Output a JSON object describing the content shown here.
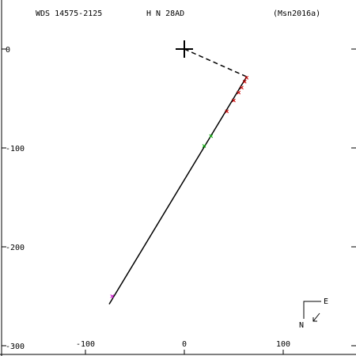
{
  "header": {
    "wds_id": "WDS 14575-2125",
    "discoverer": "H N  28AD",
    "orbit_ref": "(Msn2016a)"
  },
  "compass": {
    "east": "E",
    "north": "N"
  },
  "chart_data": {
    "type": "scatter",
    "title": "",
    "xlabel": "",
    "ylabel": "",
    "xlim": [
      -180,
      170
    ],
    "ylim": [
      -300,
      50
    ],
    "x_ticks": [
      -100,
      0,
      100
    ],
    "x_tick_labels": [
      "-100",
      "0",
      "100"
    ],
    "y_ticks": [
      0,
      -100,
      -200,
      -300
    ],
    "y_tick_labels": [
      "0",
      "-100",
      "-200",
      "-300"
    ],
    "primary": {
      "x": 0,
      "y": 0
    },
    "orbit_line": {
      "x": [
        -76,
        63
      ],
      "y": [
        -258,
        -28
      ]
    },
    "periastron_line": {
      "x": [
        0,
        63
      ],
      "y": [
        0,
        -28
      ]
    },
    "observations": [
      {
        "x": -73,
        "y": -250,
        "color": "#cc00cc"
      },
      {
        "x": 20,
        "y": -98,
        "color": "#00aa00"
      },
      {
        "x": 27,
        "y": -88,
        "color": "#00aa00"
      },
      {
        "x": 43,
        "y": -63,
        "color": "#cc0000"
      },
      {
        "x": 50,
        "y": -52,
        "color": "#cc0000"
      },
      {
        "x": 55,
        "y": -44,
        "color": "#cc0000"
      },
      {
        "x": 58,
        "y": -39,
        "color": "#cc0000"
      },
      {
        "x": 61,
        "y": -33,
        "color": "#cc0000"
      },
      {
        "x": 63,
        "y": -29,
        "color": "#cc0000"
      }
    ]
  }
}
